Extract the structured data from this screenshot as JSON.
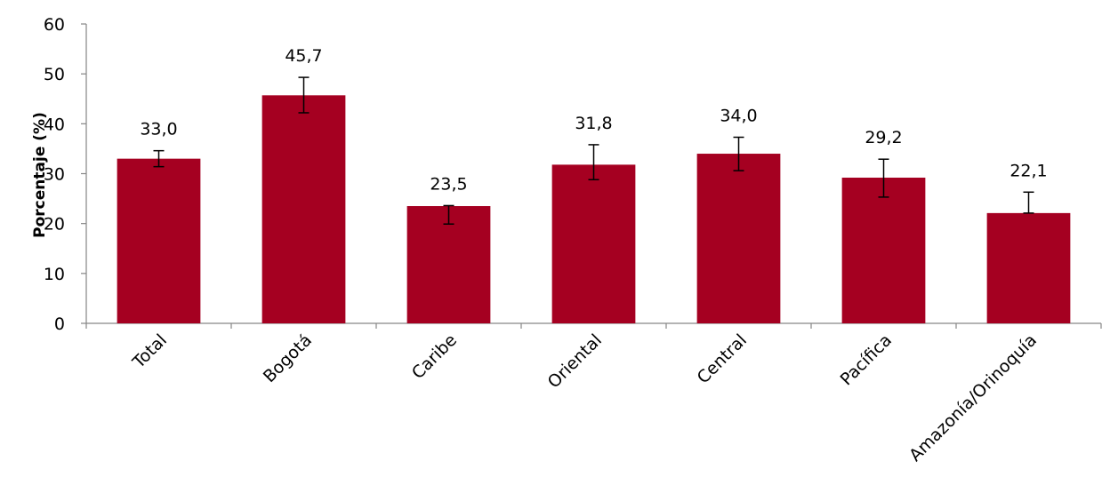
{
  "chart_data": {
    "type": "bar",
    "title": "",
    "xlabel": "",
    "ylabel": "Porcentaje (%)",
    "ylim": [
      0,
      60
    ],
    "yticks": [
      0,
      10,
      20,
      30,
      40,
      50,
      60
    ],
    "grid": false,
    "categories": [
      "Total",
      "Bogotá",
      "Caribe",
      "Oriental",
      "Central",
      "Pacífica",
      "Amazonía/Orinoquía"
    ],
    "values": [
      33.0,
      45.7,
      23.5,
      31.8,
      34.0,
      29.2,
      22.1
    ],
    "value_labels": [
      "33,0",
      "45,7",
      "23,5",
      "31,8",
      "34,0",
      "29,2",
      "22,1"
    ],
    "error_bars": [
      {
        "low": 31.4,
        "high": 34.6
      },
      {
        "low": 42.2,
        "high": 49.3
      },
      {
        "low": 19.9,
        "high": 23.6
      },
      {
        "low": 28.8,
        "high": 35.8
      },
      {
        "low": 30.6,
        "high": 37.3
      },
      {
        "low": 25.3,
        "high": 32.9
      },
      {
        "low": 22.1,
        "high": 26.3
      }
    ],
    "bar_color": "#a50021"
  }
}
